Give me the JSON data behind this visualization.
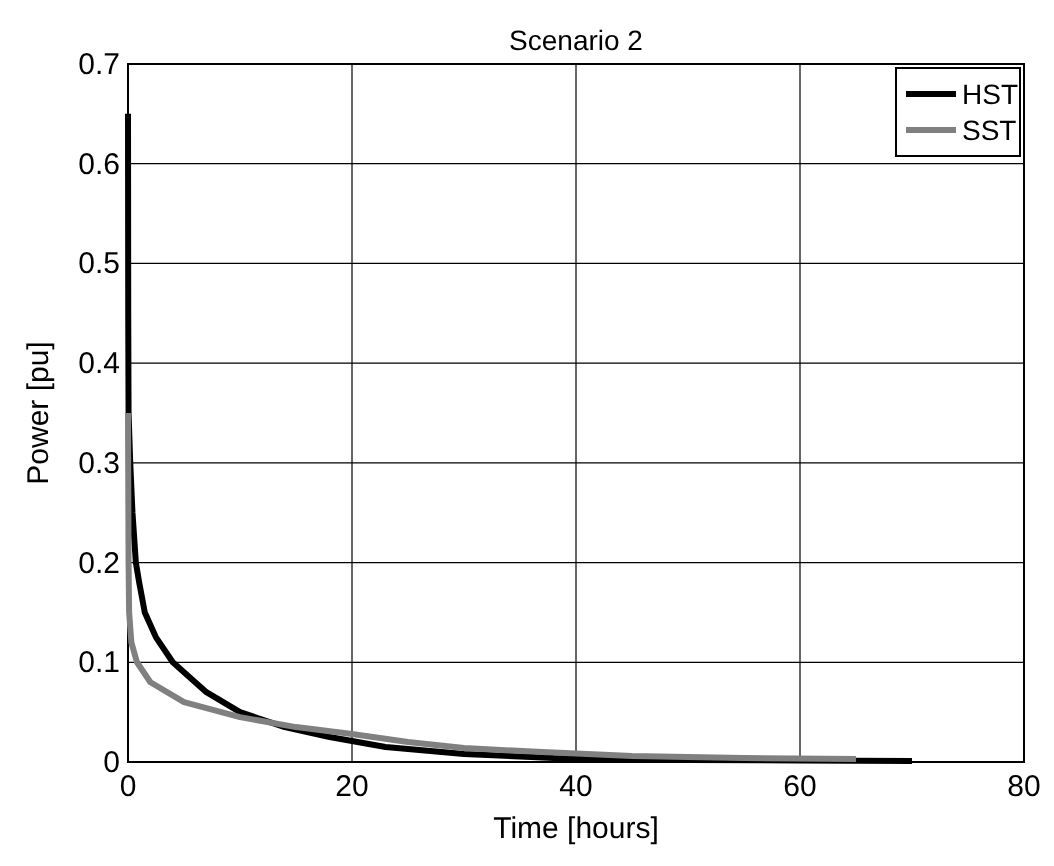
{
  "chart_data": {
    "type": "line",
    "title": "Scenario 2",
    "xlabel": "Time [hours]",
    "ylabel": "Power [pu]",
    "xlim": [
      0,
      80
    ],
    "xticks": [
      0,
      20,
      40,
      60,
      80
    ],
    "ylim": [
      0,
      0.7
    ],
    "yticks": [
      0,
      0.1,
      0.2,
      0.3,
      0.4,
      0.5,
      0.6,
      0.7
    ],
    "grid": true,
    "legend": "top right",
    "line_style": "solid",
    "series": [
      {
        "name": "HST",
        "color": "#000000",
        "x": [
          0,
          0.02,
          0.05,
          0.2,
          0.4,
          0.7,
          1,
          1.5,
          2.5,
          4,
          5.5,
          7,
          10,
          14,
          18,
          23,
          30,
          38,
          50,
          60,
          70
        ],
        "values": [
          0.65,
          0.45,
          0.35,
          0.3,
          0.25,
          0.2,
          0.18,
          0.15,
          0.125,
          0.1,
          0.085,
          0.07,
          0.05,
          0.035,
          0.025,
          0.015,
          0.008,
          0.004,
          0.002,
          0.0015,
          0.001
        ]
      },
      {
        "name": "SST",
        "color": "#808080",
        "x": [
          0,
          0.05,
          0.1,
          0.3,
          0.8,
          2,
          5,
          10,
          15,
          20,
          25,
          30,
          37,
          45,
          55,
          65
        ],
        "values": [
          0.35,
          0.2,
          0.15,
          0.12,
          0.1,
          0.08,
          0.06,
          0.045,
          0.035,
          0.028,
          0.02,
          0.014,
          0.01,
          0.006,
          0.004,
          0.003
        ]
      }
    ]
  }
}
